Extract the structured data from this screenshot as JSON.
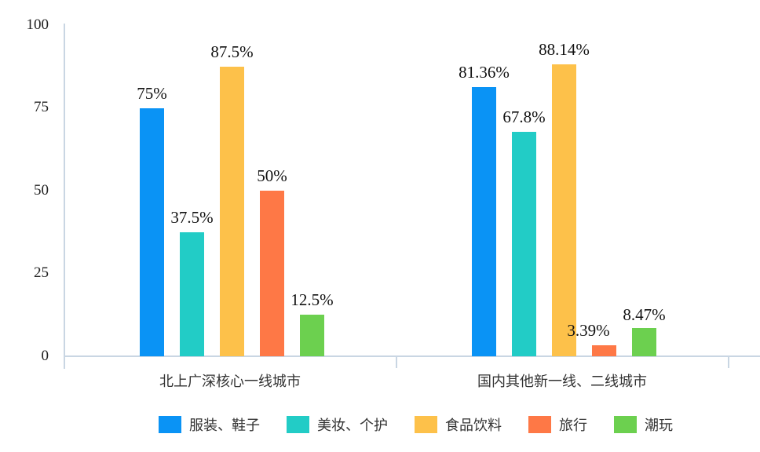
{
  "chart_data": {
    "type": "bar",
    "title": "",
    "xlabel": "",
    "ylabel": "",
    "ylim": [
      0,
      100
    ],
    "yticks": [
      0,
      25,
      50,
      75,
      100
    ],
    "grid": false,
    "legend_position": "bottom",
    "categories": [
      "北上广深核心一线城市",
      "国内其他新一线、二线城市"
    ],
    "series": [
      {
        "name": "服装、鞋子",
        "color": "#0A93F5",
        "values": [
          75,
          81.36
        ],
        "labels": [
          "75%",
          "81.36%"
        ]
      },
      {
        "name": "美妆、个护",
        "color": "#22CCC6",
        "values": [
          37.5,
          67.8
        ],
        "labels": [
          "37.5%",
          "67.8%"
        ]
      },
      {
        "name": "食品饮料",
        "color": "#FDC14A",
        "values": [
          87.5,
          88.14
        ],
        "labels": [
          "87.5%",
          "88.14%"
        ]
      },
      {
        "name": "旅行",
        "color": "#FE7846",
        "values": [
          50,
          3.39
        ],
        "labels": [
          "50%",
          "3.39%"
        ]
      },
      {
        "name": "潮玩",
        "color": "#6CD04F",
        "values": [
          12.5,
          8.47
        ],
        "labels": [
          "12.5%",
          "8.47%"
        ]
      }
    ]
  },
  "axis": {
    "ytick_labels": [
      "100",
      "75",
      "50",
      "25",
      "0"
    ]
  },
  "legend": {
    "items": [
      "服装、鞋子",
      "美妆、个护",
      "食品饮料",
      "旅行",
      "潮玩"
    ]
  }
}
